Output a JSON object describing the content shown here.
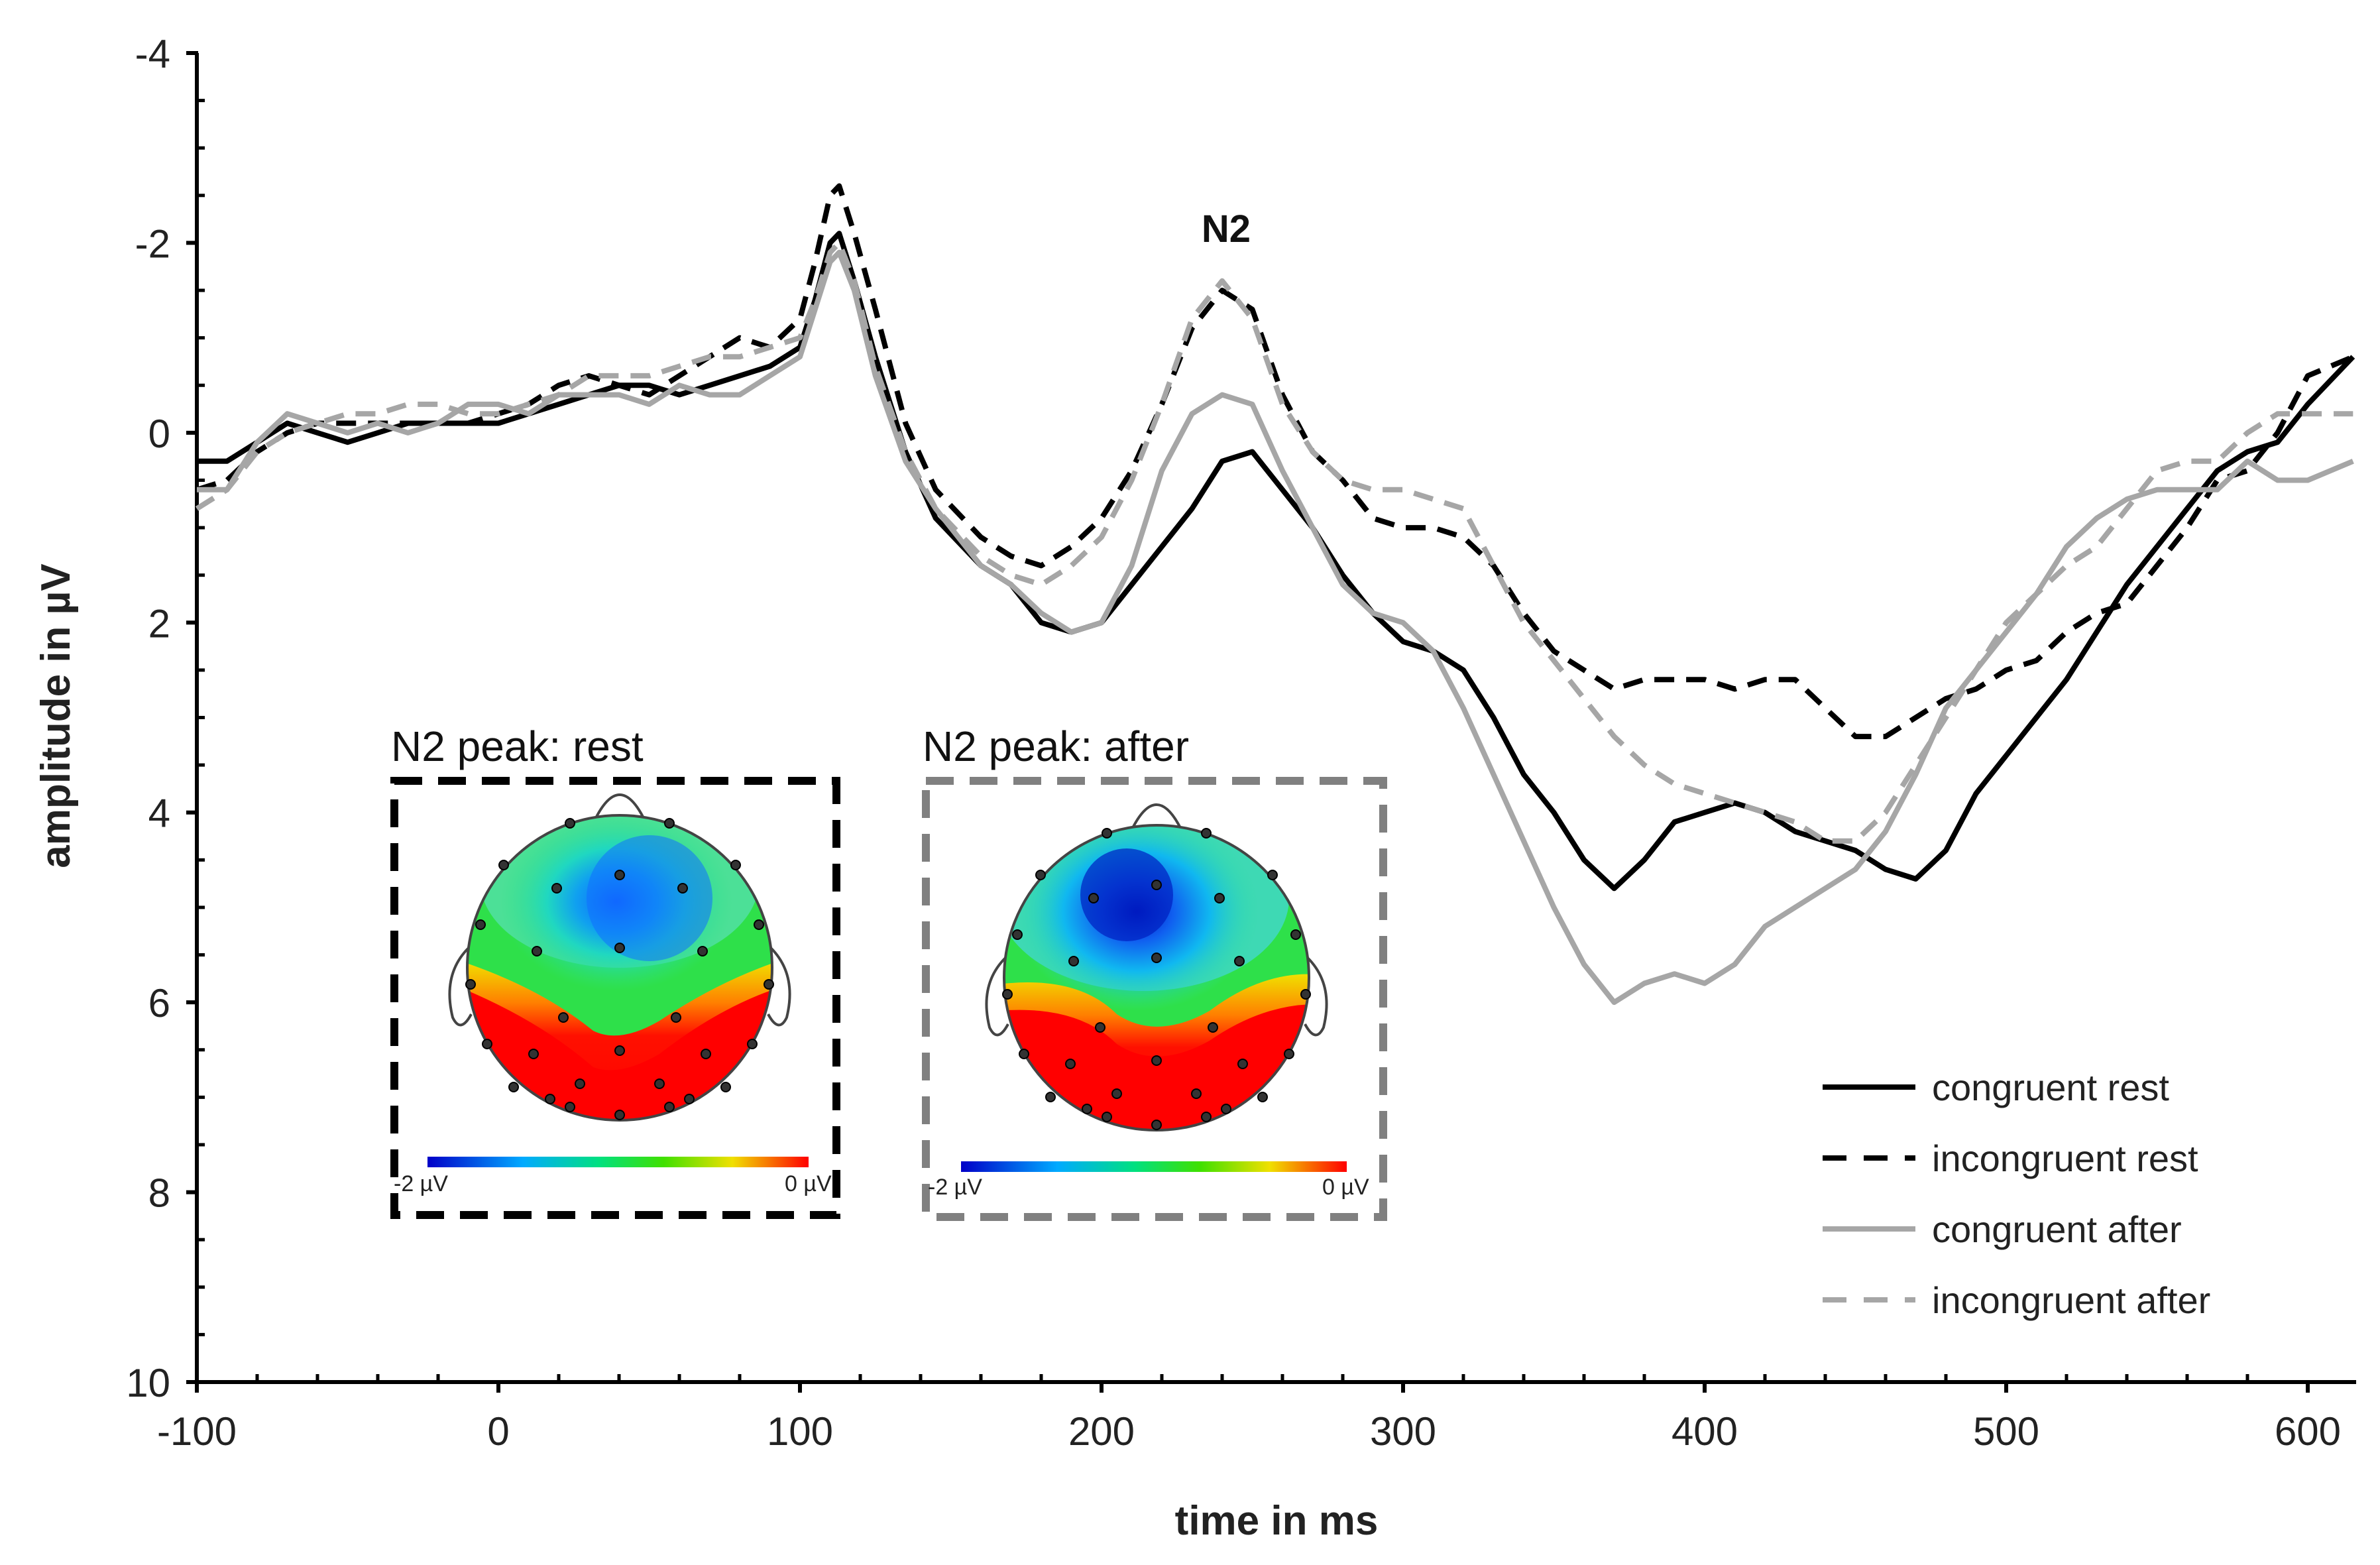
{
  "chart_data": {
    "type": "line",
    "title": "",
    "xlabel": "time in ms",
    "ylabel": "amplitude in µV",
    "xlim": [
      -100,
      615
    ],
    "ylim": [
      -4,
      10
    ],
    "y_inverted": true,
    "x_ticks": [
      -100,
      0,
      100,
      200,
      300,
      400,
      500,
      600
    ],
    "x_tick_labels": [
      "-100",
      "0",
      "100",
      "200",
      "300",
      "400",
      "500",
      "600"
    ],
    "y_ticks": [
      -4,
      -2,
      0,
      2,
      4,
      6,
      8,
      10
    ],
    "y_tick_labels": [
      "-4",
      "-2",
      "0",
      "2",
      "4",
      "6",
      "8",
      "10"
    ],
    "annotation": "N2",
    "legend_position": "bottom-right",
    "series": [
      {
        "name": "congruent rest",
        "color": "#000000",
        "dash": "solid",
        "points": [
          [
            -100,
            0.3
          ],
          [
            -90,
            0.3
          ],
          [
            -80,
            0.1
          ],
          [
            -70,
            -0.1
          ],
          [
            -60,
            0.0
          ],
          [
            -50,
            0.1
          ],
          [
            -40,
            0.0
          ],
          [
            -30,
            -0.1
          ],
          [
            -20,
            -0.1
          ],
          [
            -10,
            -0.1
          ],
          [
            0,
            -0.1
          ],
          [
            10,
            -0.2
          ],
          [
            20,
            -0.3
          ],
          [
            30,
            -0.4
          ],
          [
            40,
            -0.5
          ],
          [
            50,
            -0.5
          ],
          [
            60,
            -0.4
          ],
          [
            70,
            -0.5
          ],
          [
            80,
            -0.6
          ],
          [
            90,
            -0.7
          ],
          [
            100,
            -0.9
          ],
          [
            105,
            -1.4
          ],
          [
            110,
            -2.0
          ],
          [
            113,
            -2.1
          ],
          [
            118,
            -1.6
          ],
          [
            125,
            -0.8
          ],
          [
            135,
            0.2
          ],
          [
            145,
            0.9
          ],
          [
            160,
            1.4
          ],
          [
            170,
            1.6
          ],
          [
            180,
            2.0
          ],
          [
            190,
            2.1
          ],
          [
            200,
            2.0
          ],
          [
            210,
            1.6
          ],
          [
            220,
            1.2
          ],
          [
            230,
            0.8
          ],
          [
            240,
            0.3
          ],
          [
            250,
            0.2
          ],
          [
            260,
            0.6
          ],
          [
            270,
            1.0
          ],
          [
            280,
            1.5
          ],
          [
            290,
            1.9
          ],
          [
            300,
            2.2
          ],
          [
            310,
            2.3
          ],
          [
            320,
            2.5
          ],
          [
            330,
            3.0
          ],
          [
            340,
            3.6
          ],
          [
            350,
            4.0
          ],
          [
            360,
            4.5
          ],
          [
            370,
            4.8
          ],
          [
            380,
            4.5
          ],
          [
            390,
            4.1
          ],
          [
            400,
            4.0
          ],
          [
            410,
            3.9
          ],
          [
            420,
            4.0
          ],
          [
            430,
            4.2
          ],
          [
            440,
            4.3
          ],
          [
            450,
            4.4
          ],
          [
            460,
            4.6
          ],
          [
            470,
            4.7
          ],
          [
            480,
            4.4
          ],
          [
            490,
            3.8
          ],
          [
            500,
            3.4
          ],
          [
            510,
            3.0
          ],
          [
            520,
            2.6
          ],
          [
            530,
            2.1
          ],
          [
            540,
            1.6
          ],
          [
            550,
            1.2
          ],
          [
            560,
            0.8
          ],
          [
            570,
            0.4
          ],
          [
            580,
            0.2
          ],
          [
            590,
            0.1
          ],
          [
            600,
            -0.3
          ],
          [
            615,
            -0.8
          ]
        ]
      },
      {
        "name": "incongruent rest",
        "color": "#000000",
        "dash": "dashed",
        "points": [
          [
            -100,
            0.6
          ],
          [
            -90,
            0.5
          ],
          [
            -80,
            0.2
          ],
          [
            -70,
            0.0
          ],
          [
            -60,
            -0.1
          ],
          [
            -50,
            -0.1
          ],
          [
            -40,
            -0.1
          ],
          [
            -30,
            -0.1
          ],
          [
            -20,
            -0.1
          ],
          [
            -10,
            -0.1
          ],
          [
            0,
            -0.2
          ],
          [
            10,
            -0.3
          ],
          [
            20,
            -0.5
          ],
          [
            30,
            -0.6
          ],
          [
            40,
            -0.5
          ],
          [
            50,
            -0.4
          ],
          [
            60,
            -0.6
          ],
          [
            70,
            -0.8
          ],
          [
            80,
            -1.0
          ],
          [
            90,
            -0.9
          ],
          [
            100,
            -1.2
          ],
          [
            105,
            -1.8
          ],
          [
            110,
            -2.5
          ],
          [
            113,
            -2.6
          ],
          [
            118,
            -2.1
          ],
          [
            125,
            -1.3
          ],
          [
            135,
            -0.1
          ],
          [
            145,
            0.6
          ],
          [
            160,
            1.1
          ],
          [
            170,
            1.3
          ],
          [
            180,
            1.4
          ],
          [
            190,
            1.2
          ],
          [
            200,
            0.9
          ],
          [
            210,
            0.4
          ],
          [
            220,
            -0.3
          ],
          [
            230,
            -1.1
          ],
          [
            240,
            -1.5
          ],
          [
            250,
            -1.3
          ],
          [
            260,
            -0.4
          ],
          [
            270,
            0.2
          ],
          [
            280,
            0.5
          ],
          [
            290,
            0.9
          ],
          [
            300,
            1.0
          ],
          [
            310,
            1.0
          ],
          [
            320,
            1.1
          ],
          [
            330,
            1.4
          ],
          [
            340,
            1.9
          ],
          [
            350,
            2.3
          ],
          [
            360,
            2.5
          ],
          [
            370,
            2.7
          ],
          [
            380,
            2.6
          ],
          [
            390,
            2.6
          ],
          [
            400,
            2.6
          ],
          [
            410,
            2.7
          ],
          [
            420,
            2.6
          ],
          [
            430,
            2.6
          ],
          [
            440,
            2.9
          ],
          [
            450,
            3.2
          ],
          [
            460,
            3.2
          ],
          [
            470,
            3.0
          ],
          [
            480,
            2.8
          ],
          [
            490,
            2.7
          ],
          [
            500,
            2.5
          ],
          [
            510,
            2.4
          ],
          [
            520,
            2.1
          ],
          [
            530,
            1.9
          ],
          [
            540,
            1.8
          ],
          [
            550,
            1.4
          ],
          [
            560,
            1.0
          ],
          [
            570,
            0.5
          ],
          [
            580,
            0.4
          ],
          [
            590,
            0.0
          ],
          [
            600,
            -0.6
          ],
          [
            615,
            -0.8
          ]
        ]
      },
      {
        "name": "congruent after",
        "color": "#a6a6a6",
        "dash": "solid",
        "points": [
          [
            -100,
            0.6
          ],
          [
            -90,
            0.6
          ],
          [
            -80,
            0.1
          ],
          [
            -70,
            -0.2
          ],
          [
            -60,
            -0.1
          ],
          [
            -50,
            0.0
          ],
          [
            -40,
            -0.1
          ],
          [
            -30,
            0.0
          ],
          [
            -20,
            -0.1
          ],
          [
            -10,
            -0.3
          ],
          [
            0,
            -0.3
          ],
          [
            10,
            -0.2
          ],
          [
            20,
            -0.4
          ],
          [
            30,
            -0.4
          ],
          [
            40,
            -0.4
          ],
          [
            50,
            -0.3
          ],
          [
            60,
            -0.5
          ],
          [
            70,
            -0.4
          ],
          [
            80,
            -0.4
          ],
          [
            90,
            -0.6
          ],
          [
            100,
            -0.8
          ],
          [
            105,
            -1.3
          ],
          [
            110,
            -1.8
          ],
          [
            113,
            -1.9
          ],
          [
            118,
            -1.5
          ],
          [
            125,
            -0.6
          ],
          [
            135,
            0.3
          ],
          [
            145,
            0.8
          ],
          [
            160,
            1.4
          ],
          [
            170,
            1.6
          ],
          [
            180,
            1.9
          ],
          [
            190,
            2.1
          ],
          [
            200,
            2.0
          ],
          [
            210,
            1.4
          ],
          [
            220,
            0.4
          ],
          [
            230,
            -0.2
          ],
          [
            240,
            -0.4
          ],
          [
            250,
            -0.3
          ],
          [
            260,
            0.4
          ],
          [
            270,
            1.0
          ],
          [
            280,
            1.6
          ],
          [
            290,
            1.9
          ],
          [
            300,
            2.0
          ],
          [
            310,
            2.3
          ],
          [
            320,
            2.9
          ],
          [
            330,
            3.6
          ],
          [
            340,
            4.3
          ],
          [
            350,
            5.0
          ],
          [
            360,
            5.6
          ],
          [
            370,
            6.0
          ],
          [
            380,
            5.8
          ],
          [
            390,
            5.7
          ],
          [
            400,
            5.8
          ],
          [
            410,
            5.6
          ],
          [
            420,
            5.2
          ],
          [
            430,
            5.0
          ],
          [
            440,
            4.8
          ],
          [
            450,
            4.6
          ],
          [
            460,
            4.2
          ],
          [
            470,
            3.6
          ],
          [
            480,
            2.9
          ],
          [
            490,
            2.5
          ],
          [
            500,
            2.1
          ],
          [
            510,
            1.7
          ],
          [
            520,
            1.2
          ],
          [
            530,
            0.9
          ],
          [
            540,
            0.7
          ],
          [
            550,
            0.6
          ],
          [
            560,
            0.6
          ],
          [
            570,
            0.6
          ],
          [
            580,
            0.3
          ],
          [
            590,
            0.5
          ],
          [
            600,
            0.5
          ],
          [
            615,
            0.3
          ]
        ]
      },
      {
        "name": "incongruent after",
        "color": "#a6a6a6",
        "dash": "dashed",
        "points": [
          [
            -100,
            0.8
          ],
          [
            -90,
            0.6
          ],
          [
            -80,
            0.2
          ],
          [
            -70,
            0.0
          ],
          [
            -60,
            -0.1
          ],
          [
            -50,
            -0.2
          ],
          [
            -40,
            -0.2
          ],
          [
            -30,
            -0.3
          ],
          [
            -20,
            -0.3
          ],
          [
            -10,
            -0.2
          ],
          [
            0,
            -0.2
          ],
          [
            10,
            -0.3
          ],
          [
            20,
            -0.4
          ],
          [
            30,
            -0.6
          ],
          [
            40,
            -0.6
          ],
          [
            50,
            -0.6
          ],
          [
            60,
            -0.7
          ],
          [
            70,
            -0.8
          ],
          [
            80,
            -0.8
          ],
          [
            90,
            -0.9
          ],
          [
            100,
            -1.0
          ],
          [
            105,
            -1.4
          ],
          [
            110,
            -1.9
          ],
          [
            113,
            -2.0
          ],
          [
            118,
            -1.6
          ],
          [
            125,
            -0.7
          ],
          [
            135,
            0.2
          ],
          [
            145,
            0.8
          ],
          [
            160,
            1.3
          ],
          [
            170,
            1.5
          ],
          [
            180,
            1.6
          ],
          [
            190,
            1.4
          ],
          [
            200,
            1.1
          ],
          [
            210,
            0.5
          ],
          [
            220,
            -0.3
          ],
          [
            230,
            -1.2
          ],
          [
            240,
            -1.6
          ],
          [
            250,
            -1.2
          ],
          [
            260,
            -0.3
          ],
          [
            270,
            0.2
          ],
          [
            280,
            0.5
          ],
          [
            290,
            0.6
          ],
          [
            300,
            0.6
          ],
          [
            310,
            0.7
          ],
          [
            320,
            0.8
          ],
          [
            330,
            1.4
          ],
          [
            340,
            2.0
          ],
          [
            350,
            2.4
          ],
          [
            360,
            2.8
          ],
          [
            370,
            3.2
          ],
          [
            380,
            3.5
          ],
          [
            390,
            3.7
          ],
          [
            400,
            3.8
          ],
          [
            410,
            3.9
          ],
          [
            420,
            4.0
          ],
          [
            430,
            4.1
          ],
          [
            440,
            4.3
          ],
          [
            450,
            4.3
          ],
          [
            460,
            4.0
          ],
          [
            470,
            3.5
          ],
          [
            480,
            3.0
          ],
          [
            490,
            2.5
          ],
          [
            500,
            2.0
          ],
          [
            510,
            1.7
          ],
          [
            520,
            1.4
          ],
          [
            530,
            1.2
          ],
          [
            540,
            0.8
          ],
          [
            550,
            0.4
          ],
          [
            560,
            0.3
          ],
          [
            570,
            0.3
          ],
          [
            580,
            0.0
          ],
          [
            590,
            -0.2
          ],
          [
            600,
            -0.2
          ],
          [
            615,
            -0.2
          ]
        ]
      }
    ],
    "insets": [
      {
        "title": "N2 peak:  rest",
        "colorbar_min_label": "-2 µV",
        "colorbar_max_label": "0 µV",
        "frame_color": "#000000"
      },
      {
        "title": "N2 peak:  after",
        "colorbar_min_label": "-2 µV",
        "colorbar_max_label": "0 µV",
        "frame_color": "#808080"
      }
    ]
  }
}
